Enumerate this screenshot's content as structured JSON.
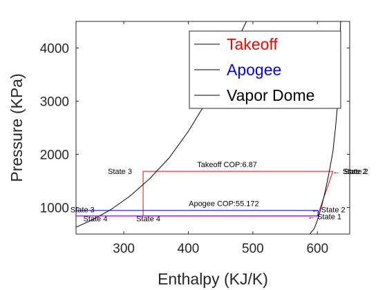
{
  "chart_data": {
    "type": "line",
    "xlabel": "Enthalpy (KJ/K)",
    "ylabel": "Pressure (KPa)",
    "xlim": [
      226,
      650
    ],
    "ylim": [
      500,
      4500
    ],
    "xticks": [
      {
        "value": 300,
        "label": "300"
      },
      {
        "value": 400,
        "label": "400"
      },
      {
        "value": 500,
        "label": "500"
      },
      {
        "value": 600,
        "label": "600"
      }
    ],
    "yticks": [
      {
        "value": 1000,
        "label": "1000"
      },
      {
        "value": 2000,
        "label": "2000"
      },
      {
        "value": 3000,
        "label": "3000"
      },
      {
        "value": 4000,
        "label": "4000"
      }
    ],
    "legend_position": "top-right",
    "series": [
      {
        "name": "Takeoff",
        "color": "#ff0000",
        "points": [
          [
            330,
            1680
          ],
          [
            624,
            1680
          ],
          [
            600,
            840
          ],
          [
            330,
            840
          ],
          [
            330,
            1680
          ]
        ]
      },
      {
        "name": "Apogee",
        "color": "#0000ff",
        "points": [
          [
            226,
            945
          ],
          [
            601,
            945
          ],
          [
            601,
            840
          ],
          [
            226,
            840
          ]
        ]
      },
      {
        "name": "Vapor Dome",
        "color": "#000000",
        "points_left": [
          [
            226,
            630
          ],
          [
            250,
            760
          ],
          [
            280,
            960
          ],
          [
            310,
            1220
          ],
          [
            340,
            1540
          ],
          [
            370,
            1930
          ],
          [
            400,
            2430
          ],
          [
            430,
            3030
          ],
          [
            460,
            3750
          ],
          [
            490,
            4500
          ]
        ],
        "points_right": [
          [
            588,
            500
          ],
          [
            595,
            600
          ],
          [
            600,
            760
          ],
          [
            606,
            1000
          ],
          [
            612,
            1300
          ],
          [
            618,
            1650
          ],
          [
            624,
            2050
          ],
          [
            628,
            2500
          ],
          [
            632,
            3050
          ],
          [
            634,
            3700
          ],
          [
            636,
            4500
          ]
        ]
      }
    ],
    "annotations": [
      {
        "text": "Takeoff COP:6.87",
        "x": 460,
        "y": 1760
      },
      {
        "text": "Apogee COP:55.172",
        "x": 455,
        "y": 1025
      },
      {
        "text": "State 3",
        "x": 294,
        "y": 1630
      },
      {
        "text": "State 2",
        "x": 660,
        "y": 1630
      },
      {
        "text": "State 3",
        "x": 236,
        "y": 910
      },
      {
        "text": "State 4",
        "x": 256,
        "y": 740
      },
      {
        "text": "State 4",
        "x": 338,
        "y": 740
      },
      {
        "text": "← State 2",
        "x": 617,
        "y": 910
      },
      {
        "text": "← State 1",
        "x": 611,
        "y": 780
      },
      {
        "text": "← State 2",
        "x": 650,
        "y": 1630
      }
    ]
  }
}
